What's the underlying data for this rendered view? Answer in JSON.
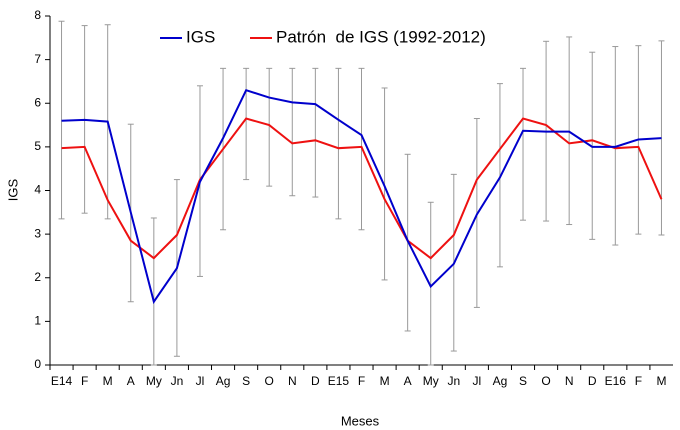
{
  "chart_data": {
    "type": "line",
    "x_label": "Meses",
    "y_label": "IGS",
    "categories": [
      "E14",
      "F",
      "M",
      "A",
      "My",
      "Jn",
      "Jl",
      "Ag",
      "S",
      "O",
      "N",
      "D",
      "E15",
      "F",
      "M",
      "A",
      "My",
      "Jn",
      "Jl",
      "Ag",
      "S",
      "O",
      "N",
      "D",
      "E16",
      "F",
      "M"
    ],
    "ylim": [
      0,
      8
    ],
    "yticks": [
      0,
      1,
      2,
      3,
      4,
      5,
      6,
      7,
      8
    ],
    "series": [
      {
        "name": "IGS",
        "color": "#0000cc",
        "values": [
          5.6,
          5.62,
          5.58,
          3.5,
          1.45,
          2.22,
          4.2,
          5.2,
          6.3,
          6.13,
          6.02,
          5.98,
          5.62,
          5.27,
          4.1,
          2.85,
          1.8,
          2.32,
          3.45,
          4.3,
          5.37,
          5.35,
          5.35,
          5.0,
          5.0,
          5.17,
          5.2
        ],
        "error_low": [
          3.35,
          3.48,
          3.35,
          1.45,
          0,
          0.2,
          2.03,
          3.1,
          4.25,
          4.1,
          3.88,
          3.85,
          3.35,
          3.1,
          1.95,
          0.78,
          0,
          0.32,
          1.32,
          2.25,
          3.32,
          3.3,
          3.22,
          2.88,
          2.75,
          3.0,
          2.98
        ],
        "error_high": [
          7.88,
          7.78,
          7.8,
          5.52,
          3.37,
          4.25,
          6.4,
          6.8,
          6.8,
          6.8,
          6.8,
          6.8,
          6.8,
          6.8,
          6.35,
          4.83,
          3.73,
          4.37,
          5.65,
          6.45,
          6.8,
          7.42,
          7.52,
          7.17,
          7.3,
          7.32,
          7.43
        ],
        "error_color": "#999999"
      },
      {
        "name": "Patrón  de IGS (1992-2012)",
        "color": "#ee1111",
        "values": [
          4.97,
          5.0,
          3.78,
          2.85,
          2.45,
          2.98,
          4.25,
          4.95,
          5.65,
          5.5,
          5.08,
          5.15,
          4.97,
          5.0,
          3.8,
          2.85,
          2.45,
          2.98,
          4.25,
          4.95,
          5.65,
          5.5,
          5.08,
          5.15,
          4.97,
          5.0,
          3.8
        ]
      }
    ]
  }
}
